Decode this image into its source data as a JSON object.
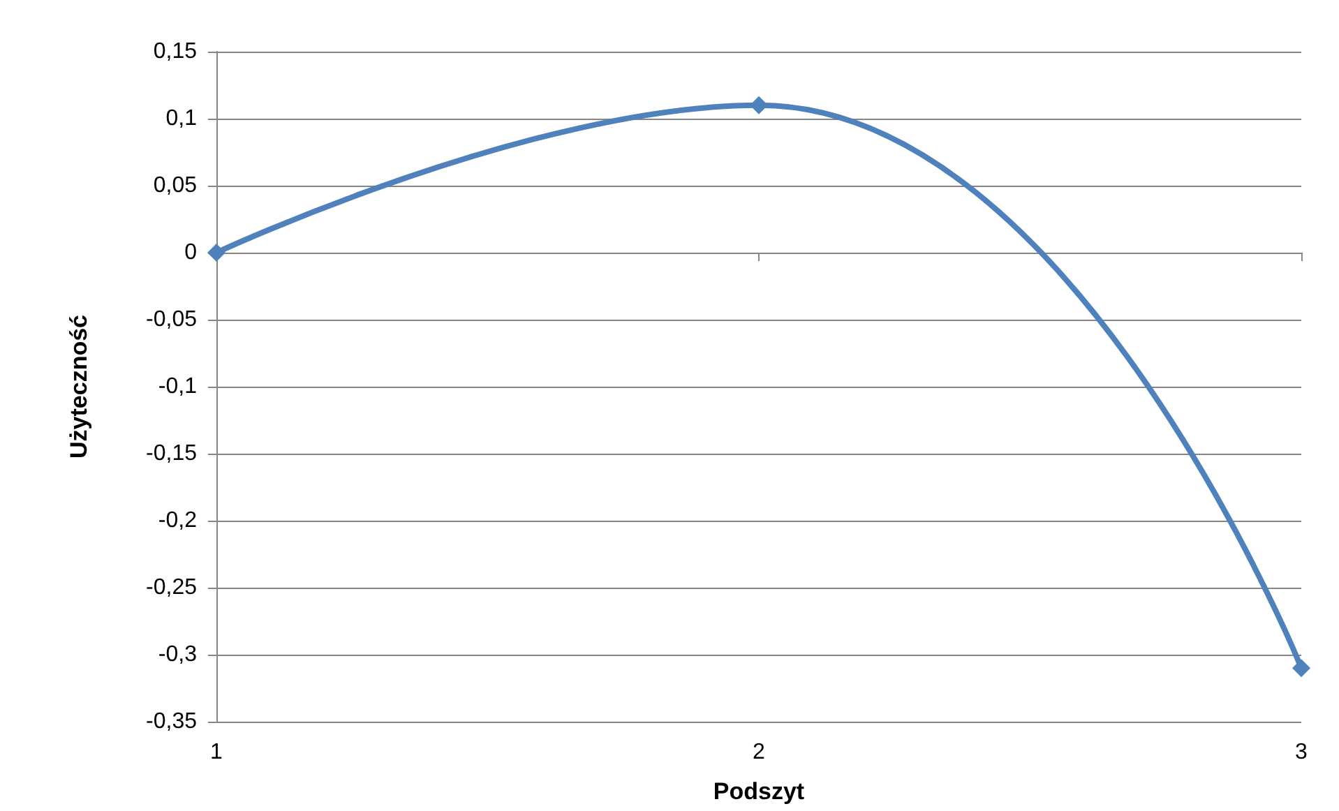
{
  "chart_data": {
    "type": "line",
    "xlabel": "Podszyt",
    "ylabel": "Użyteczność",
    "categories": [
      "1",
      "2",
      "3"
    ],
    "series": [
      {
        "color": "#4f81bd",
        "values": [
          0,
          0.11,
          -0.31
        ]
      }
    ],
    "ylim": [
      -0.35,
      0.15
    ],
    "yticks": [
      {
        "value": -0.35,
        "label": "-0,35"
      },
      {
        "value": -0.3,
        "label": "-0,3"
      },
      {
        "value": -0.25,
        "label": "-0,25"
      },
      {
        "value": -0.2,
        "label": "-0,2"
      },
      {
        "value": -0.15,
        "label": "-0,15"
      },
      {
        "value": -0.1,
        "label": "-0,1"
      },
      {
        "value": -0.05,
        "label": "-0,05"
      },
      {
        "value": 0,
        "label": "0"
      },
      {
        "value": 0.05,
        "label": "0,05"
      },
      {
        "value": 0.1,
        "label": "0,1"
      },
      {
        "value": 0.15,
        "label": "0,15"
      }
    ],
    "grid": "y",
    "marker": "diamond",
    "line_style": "solid"
  }
}
